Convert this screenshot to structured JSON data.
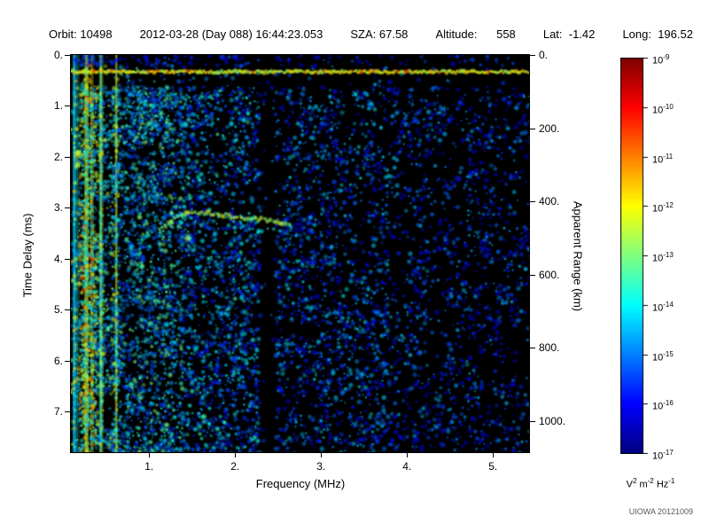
{
  "header": {
    "fields": [
      "Orbit: 10498",
      "2012-03-28 (Day 088) 16:44:23.053",
      "SZA: 67.58",
      "Altitude:      558",
      "Lat:  -1.42",
      "Long:  196.52"
    ]
  },
  "chart_data": {
    "type": "heatmap",
    "title": "",
    "xlabel": "Frequency (MHz)",
    "ylabel_left": "Time Delay (ms)",
    "ylabel_right": "Apparent Range (km)",
    "x_range_mhz": [
      0.09,
      5.42
    ],
    "y_range_ms": [
      0,
      7.8
    ],
    "right_axis_range_km": [
      0,
      1085
    ],
    "x_ticks": [
      {
        "value": 1,
        "label": "1."
      },
      {
        "value": 2,
        "label": "2."
      },
      {
        "value": 3,
        "label": "3."
      },
      {
        "value": 4,
        "label": "4."
      },
      {
        "value": 5,
        "label": "5."
      }
    ],
    "y_ticks_left": [
      {
        "value": 0,
        "label": "0."
      },
      {
        "value": 1,
        "label": "1."
      },
      {
        "value": 2,
        "label": "2."
      },
      {
        "value": 3,
        "label": "3."
      },
      {
        "value": 4,
        "label": "4."
      },
      {
        "value": 5,
        "label": "5."
      },
      {
        "value": 6,
        "label": "6."
      },
      {
        "value": 7,
        "label": "7."
      }
    ],
    "y_ticks_right": [
      {
        "value": 0,
        "label": "0."
      },
      {
        "value": 200,
        "label": "200."
      },
      {
        "value": 400,
        "label": "400."
      },
      {
        "value": 600,
        "label": "600."
      },
      {
        "value": 800,
        "label": "800."
      },
      {
        "value": 1000,
        "label": "1000."
      }
    ],
    "colorbar": {
      "scale": "log",
      "max": "1e-9",
      "min": "1e-17",
      "tick_exponents": [
        -9,
        -10,
        -11,
        -12,
        -13,
        -14,
        -15,
        -16,
        -17
      ],
      "units_parts": [
        {
          "base": "V",
          "sup": "2"
        },
        {
          "base": "m",
          "sup": "-2"
        },
        {
          "base": "Hz",
          "sup": "-1"
        }
      ]
    },
    "credit": "UIOWA 20121009",
    "features_summary": [
      "bright green surface/noise band across all frequencies near 0.33 ms delay",
      "intense green/cyan vertical striping below ~0.65 MHz over full delay range",
      "dense blue speckle 0.65-2.3 MHz, sparser blue speckle above 2.5 MHz",
      "quiet black vertical gap near 2.3-2.47 MHz",
      "green ionospheric echo trace near 3.1-3.4 ms between 1.1 and 2.65 MHz"
    ],
    "render": {
      "seed": 42,
      "background": "#000000",
      "quiet_top_ms": 0.62,
      "regions": [
        {
          "f0": 0.09,
          "f1": 0.4,
          "density": 1.0,
          "tmin": 0.25,
          "tmax": 0.72,
          "stripe": 0.85
        },
        {
          "f0": 0.4,
          "f1": 0.66,
          "density": 0.85,
          "tmin": 0.2,
          "tmax": 0.6,
          "stripe": 0.6
        },
        {
          "f0": 0.66,
          "f1": 1.38,
          "density": 0.6,
          "tmin": 0.16,
          "tmax": 0.5,
          "stripe": 0.3
        },
        {
          "f0": 1.38,
          "f1": 2.3,
          "density": 0.42,
          "tmin": 0.13,
          "tmax": 0.42,
          "stripe": 0.15
        },
        {
          "f0": 2.3,
          "f1": 2.47,
          "density": 0.05,
          "tmin": 0.1,
          "tmax": 0.28,
          "stripe": 0
        },
        {
          "f0": 2.47,
          "f1": 3.8,
          "density": 0.3,
          "tmin": 0.11,
          "tmax": 0.38,
          "stripe": 0
        },
        {
          "f0": 3.8,
          "f1": 5.42,
          "density": 0.2,
          "tmin": 0.1,
          "tmax": 0.34,
          "stripe": 0
        }
      ],
      "surface_band": {
        "delay_ms": 0.33,
        "half_width_ms": 0.1,
        "tmin": 0.5,
        "tmax": 0.7
      },
      "echo_trace": {
        "tmin": 0.45,
        "tmax": 0.62,
        "points": [
          {
            "f": 1.12,
            "d": 3.4
          },
          {
            "f": 1.3,
            "d": 3.2
          },
          {
            "f": 1.5,
            "d": 3.08
          },
          {
            "f": 1.8,
            "d": 3.12
          },
          {
            "f": 2.1,
            "d": 3.2
          },
          {
            "f": 2.45,
            "d": 3.25
          },
          {
            "f": 2.65,
            "d": 3.35
          }
        ]
      },
      "hot_spots": [
        {
          "f": 0.17,
          "d": 1.95,
          "t": 0.65,
          "r": 6
        },
        {
          "f": 0.17,
          "d": 2.15,
          "t": 0.6,
          "r": 5
        },
        {
          "f": 0.92,
          "d": 4.15,
          "t": 0.5,
          "r": 4
        },
        {
          "f": 1.45,
          "d": 3.6,
          "t": 0.55,
          "r": 5
        },
        {
          "f": 1.64,
          "d": 7.1,
          "t": 0.45,
          "r": 4
        }
      ]
    }
  }
}
